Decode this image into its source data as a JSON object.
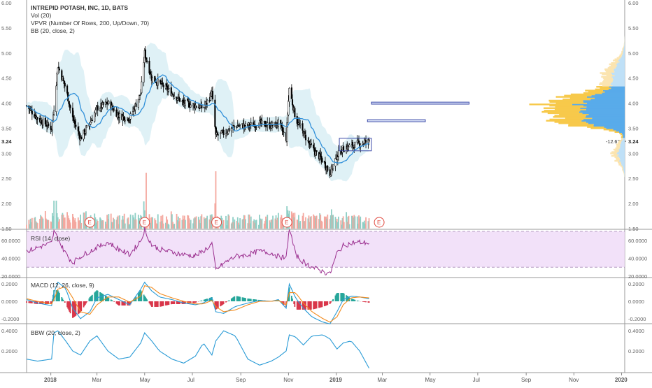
{
  "legend": {
    "title": "INTREPID POTASH, INC, 1D, BATS",
    "vol": "Vol (20)",
    "vpvr": "VPVR (Number Of Rows, 200, Up/Down, 70)",
    "bb": "BB (20, close, 2)"
  },
  "price_axis_ticks": [
    "6.00",
    "5.50",
    "5.00",
    "4.50",
    "4.00",
    "3.50",
    "3.00",
    "2.50",
    "2.00",
    "1.50"
  ],
  "last_price_label": "3.24",
  "change_label": "-12.67%",
  "earnings_marker": "E",
  "x_axis_labels": [
    "2018",
    "Mar",
    "May",
    "Jul",
    "Sep",
    "Nov",
    "2019",
    "Mar",
    "May",
    "Jul",
    "Sep",
    "Nov",
    "2020"
  ],
  "rsi": {
    "title": "RSI (14, close)",
    "ticks": [
      "60.0000",
      "40.0000",
      "20.0000"
    ]
  },
  "macd": {
    "title": "MACD (12, 26, close, 9)",
    "ticks": [
      "0.2000",
      "0.0000",
      "-0.2000"
    ]
  },
  "bbw": {
    "title": "BBW (20, close, 2)",
    "ticks": [
      "0.4000",
      "0.2000"
    ]
  },
  "colors": {
    "candle": "#000000",
    "bb_basis": "#2f8fd9",
    "bb_fill": "#d9eef5",
    "vol_up": "#8fcfc6",
    "vol_down": "#f4a79e",
    "vpvr_up": "#59abea",
    "vpvr_down": "#f7c94b",
    "rsi_line": "#9b2f8f",
    "rsi_band": "#efdaf7",
    "macd_line": "#2a9bd6",
    "signal_line": "#f28b1e",
    "hist_pos": "#26a69a",
    "hist_neg": "#d9374a",
    "bbw_line": "#2a9bd6",
    "rect_border": "#3c4aa8",
    "rect_fill": "#d9e1f7"
  },
  "chart_data": {
    "type": "line",
    "title": "INTREPID POTASH, INC, 1D, BATS",
    "x": [
      "2017-12-01",
      "2017-12-15",
      "2018-01-02",
      "2018-01-05",
      "2018-01-10",
      "2018-01-20",
      "2018-01-29",
      "2018-02-08",
      "2018-02-20",
      "2018-03-01",
      "2018-03-15",
      "2018-03-29",
      "2018-04-12",
      "2018-04-26",
      "2018-05-01",
      "2018-05-10",
      "2018-05-20",
      "2018-06-05",
      "2018-06-20",
      "2018-07-05",
      "2018-07-15",
      "2018-07-26",
      "2018-07-31",
      "2018-08-10",
      "2018-08-25",
      "2018-09-10",
      "2018-09-25",
      "2018-10-10",
      "2018-10-19",
      "2018-10-29",
      "2018-11-02",
      "2018-11-10",
      "2018-11-20",
      "2018-12-01",
      "2018-12-15",
      "2018-12-24",
      "2019-01-02",
      "2019-01-10",
      "2019-01-20",
      "2019-01-31",
      "2019-02-12"
    ],
    "series": [
      {
        "values": [
          3.95,
          3.7,
          3.5,
          3.9,
          4.75,
          4.3,
          3.7,
          3.3,
          3.6,
          3.9,
          4.0,
          3.75,
          3.7,
          4.2,
          5.0,
          4.5,
          4.4,
          4.2,
          4.0,
          3.95,
          3.9,
          4.2,
          3.35,
          3.4,
          3.55,
          3.55,
          3.6,
          3.55,
          3.6,
          3.3,
          4.3,
          3.7,
          3.4,
          3.1,
          2.85,
          2.6,
          2.95,
          3.1,
          3.15,
          3.2,
          3.24
        ]
      }
    ],
    "volume_peaks": [
      {
        "date": "2018-05-03",
        "value": "high"
      },
      {
        "date": "2018-07-31",
        "value": "highest"
      }
    ],
    "rsi_values": [
      48,
      52,
      57,
      70,
      62,
      45,
      35,
      42,
      48,
      52,
      58,
      50,
      44,
      60,
      72,
      55,
      50,
      47,
      44,
      43,
      48,
      56,
      27,
      34,
      42,
      44,
      48,
      46,
      42,
      40,
      74,
      44,
      36,
      30,
      25,
      22,
      46,
      54,
      57,
      58,
      57
    ],
    "macd_values": [
      0.02,
      -0.02,
      -0.05,
      0.1,
      0.22,
      0.15,
      -0.08,
      -0.2,
      -0.12,
      0.04,
      0.08,
      0.02,
      -0.04,
      0.14,
      0.22,
      0.12,
      0.05,
      0.02,
      -0.02,
      -0.04,
      -0.02,
      0.04,
      -0.12,
      -0.14,
      -0.06,
      -0.02,
      0.01,
      0.0,
      0.02,
      -0.08,
      0.2,
      0.04,
      -0.08,
      -0.18,
      -0.24,
      -0.26,
      -0.12,
      0.02,
      0.06,
      0.05,
      0.03
    ],
    "signal_values": [
      0.03,
      0.0,
      -0.03,
      0.02,
      0.14,
      0.17,
      0.04,
      -0.12,
      -0.15,
      -0.04,
      0.05,
      0.05,
      -0.01,
      0.06,
      0.18,
      0.16,
      0.09,
      0.04,
      0.0,
      -0.03,
      -0.03,
      0.01,
      -0.06,
      -0.12,
      -0.1,
      -0.04,
      0.0,
      0.0,
      0.01,
      -0.04,
      0.1,
      0.1,
      -0.02,
      -0.12,
      -0.2,
      -0.24,
      -0.18,
      -0.04,
      0.04,
      0.05,
      0.04
    ],
    "bbw_values": [
      0.12,
      0.1,
      0.12,
      0.38,
      0.4,
      0.3,
      0.2,
      0.16,
      0.3,
      0.35,
      0.2,
      0.12,
      0.14,
      0.28,
      0.38,
      0.3,
      0.2,
      0.12,
      0.08,
      0.15,
      0.28,
      0.16,
      0.3,
      0.4,
      0.35,
      0.12,
      0.06,
      0.1,
      0.14,
      0.2,
      0.36,
      0.34,
      0.26,
      0.35,
      0.36,
      0.32,
      0.22,
      0.28,
      0.3,
      0.2,
      0.03
    ],
    "price_ylim": [
      1.5,
      6.0
    ],
    "rsi_ylim": [
      20,
      70
    ],
    "macd_ylim": [
      -0.25,
      0.25
    ],
    "bbw_ylim": [
      0.0,
      0.45
    ],
    "xlim": [
      "2017-12-01",
      "2020-01-05"
    ],
    "earnings_dates": [
      "2018-02-20",
      "2018-05-01",
      "2018-08-01",
      "2018-10-30",
      "2019-02-25"
    ],
    "drawn_ranges": [
      {
        "x_start": "2019-01-05",
        "x_end": "2019-02-15",
        "y_low": 3.05,
        "y_high": 3.3
      },
      {
        "x_start": "2019-02-15",
        "x_end": "2019-06-20",
        "y_low": 3.98,
        "y_high": 4.02
      },
      {
        "x_start": "2019-02-10",
        "x_end": "2019-04-25",
        "y_low": 3.63,
        "y_high": 3.67
      }
    ],
    "grid": false
  }
}
